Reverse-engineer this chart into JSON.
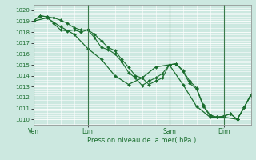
{
  "xlabel": "Pression niveau de la mer( hPa )",
  "bg_color": "#cce8e0",
  "grid_color": "#ffffff",
  "line_color": "#1a6e2e",
  "grid_minor_color": "#ddeee8",
  "ylim": [
    1009.5,
    1020.5
  ],
  "yticks": [
    1010,
    1011,
    1012,
    1013,
    1014,
    1015,
    1016,
    1017,
    1018,
    1019,
    1020
  ],
  "day_labels": [
    "Ven",
    "Lun",
    "Sam",
    "Dim"
  ],
  "day_positions": [
    0,
    16,
    40,
    56
  ],
  "xlim": [
    0,
    64
  ],
  "series1_x": [
    0,
    2,
    4,
    6,
    8,
    10,
    12,
    14,
    16,
    18,
    20,
    22,
    24,
    26,
    28,
    30,
    32,
    34,
    36,
    38,
    40,
    42,
    44,
    46,
    48,
    50,
    52,
    54,
    56,
    58,
    60,
    62,
    64
  ],
  "series1": [
    1019.0,
    1019.5,
    1019.4,
    1019.3,
    1019.1,
    1018.8,
    1018.4,
    1018.2,
    1018.2,
    1017.8,
    1017.2,
    1016.6,
    1016.3,
    1015.5,
    1014.8,
    1014.0,
    1013.8,
    1013.2,
    1013.5,
    1013.8,
    1015.0,
    1015.1,
    1014.4,
    1013.3,
    1012.8,
    1011.2,
    1010.3,
    1010.2,
    1010.3,
    1010.5,
    1010.0,
    1011.1,
    1012.2
  ],
  "series2_x": [
    0,
    2,
    4,
    6,
    8,
    10,
    12,
    14,
    16,
    18,
    20,
    22,
    24,
    26,
    28,
    30,
    32,
    34,
    36,
    38,
    40,
    42,
    44,
    46,
    48,
    50,
    52,
    54,
    56,
    58,
    60,
    62,
    64
  ],
  "series2": [
    1019.0,
    1019.5,
    1019.4,
    1018.8,
    1018.2,
    1018.1,
    1018.2,
    1018.0,
    1018.2,
    1017.5,
    1016.6,
    1016.4,
    1016.0,
    1015.3,
    1014.3,
    1013.8,
    1013.1,
    1013.5,
    1013.8,
    1014.2,
    1015.0,
    1015.1,
    1014.5,
    1013.5,
    1012.9,
    1011.3,
    1010.4,
    1010.2,
    1010.3,
    1010.5,
    1010.0,
    1011.1,
    1012.3
  ],
  "series3_x": [
    0,
    4,
    8,
    12,
    16,
    20,
    24,
    28,
    32,
    36,
    40,
    44,
    48,
    52,
    56,
    60,
    64
  ],
  "series3": [
    1019.0,
    1019.3,
    1018.5,
    1017.8,
    1016.5,
    1015.5,
    1014.0,
    1013.2,
    1013.8,
    1014.8,
    1015.0,
    1013.2,
    1011.2,
    1010.2,
    1010.2,
    1010.0,
    1012.2
  ]
}
